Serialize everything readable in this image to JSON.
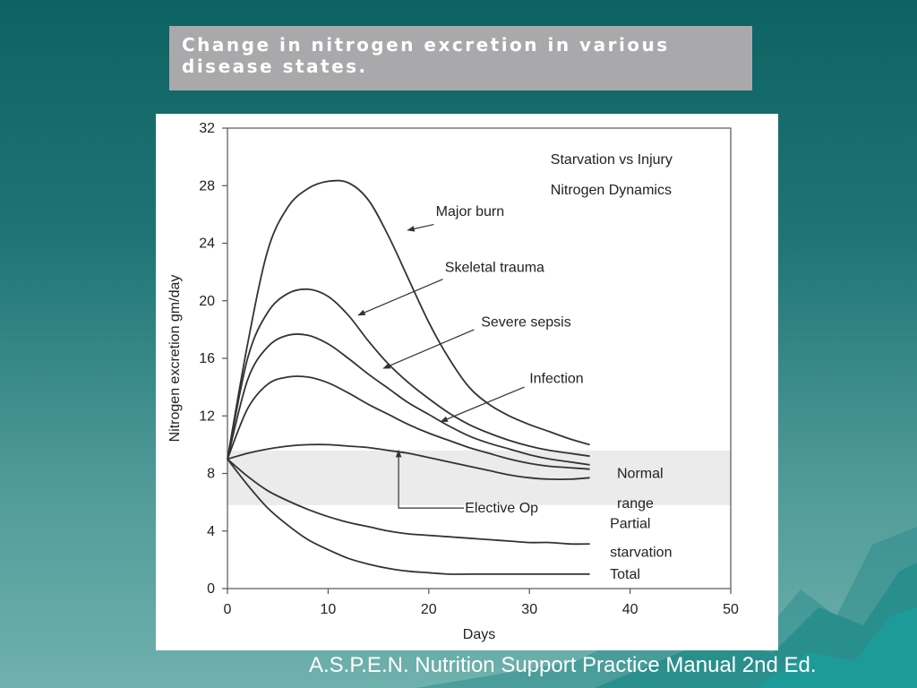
{
  "slide": {
    "title_line1": "Change in nitrogen excretion in various",
    "title_line2": "disease states.",
    "citation": "A.S.P.E.N. Nutrition Support Practice Manual 2nd Ed."
  },
  "chart_data": {
    "type": "line",
    "title_line1": "Starvation vs Injury",
    "title_line2": "Nitrogen Dynamics",
    "xlabel": "Days",
    "ylabel": "Nitrogen excretion gm/day",
    "xlim": [
      0,
      50
    ],
    "ylim": [
      0,
      32
    ],
    "xticks": [
      0,
      10,
      20,
      30,
      40,
      50
    ],
    "yticks": [
      0,
      4,
      8,
      12,
      16,
      20,
      24,
      28,
      32
    ],
    "normal_range": [
      5.8,
      9.6
    ],
    "normal_range_label_line1": "Normal",
    "normal_range_label_line2": "range",
    "series": [
      {
        "name": "Major burn",
        "points": [
          [
            0,
            9
          ],
          [
            2,
            17
          ],
          [
            4,
            23.5
          ],
          [
            6,
            26.5
          ],
          [
            8,
            27.8
          ],
          [
            10,
            28.3
          ],
          [
            12,
            28.2
          ],
          [
            14,
            27
          ],
          [
            16,
            24.5
          ],
          [
            18,
            21.5
          ],
          [
            20,
            18.5
          ],
          [
            22,
            16
          ],
          [
            24,
            14
          ],
          [
            26,
            12.8
          ],
          [
            28,
            12
          ],
          [
            30,
            11.4
          ],
          [
            32,
            10.9
          ],
          [
            34,
            10.4
          ],
          [
            36,
            10
          ]
        ]
      },
      {
        "name": "Skeletal trauma",
        "points": [
          [
            0,
            9
          ],
          [
            2,
            16
          ],
          [
            4,
            19.2
          ],
          [
            6,
            20.5
          ],
          [
            8,
            20.8
          ],
          [
            10,
            20.3
          ],
          [
            12,
            19
          ],
          [
            14,
            17.2
          ],
          [
            16,
            15.6
          ],
          [
            18,
            14.3
          ],
          [
            20,
            13.2
          ],
          [
            22,
            12.2
          ],
          [
            24,
            11.4
          ],
          [
            26,
            10.8
          ],
          [
            28,
            10.3
          ],
          [
            30,
            9.9
          ],
          [
            32,
            9.6
          ],
          [
            34,
            9.4
          ],
          [
            36,
            9.2
          ]
        ]
      },
      {
        "name": "Severe sepsis",
        "points": [
          [
            0,
            9
          ],
          [
            2,
            14.5
          ],
          [
            4,
            16.8
          ],
          [
            6,
            17.6
          ],
          [
            8,
            17.6
          ],
          [
            10,
            17
          ],
          [
            12,
            16
          ],
          [
            14,
            14.9
          ],
          [
            16,
            13.9
          ],
          [
            18,
            12.9
          ],
          [
            20,
            12.1
          ],
          [
            22,
            11.3
          ],
          [
            24,
            10.6
          ],
          [
            26,
            10.1
          ],
          [
            28,
            9.7
          ],
          [
            30,
            9.3
          ],
          [
            32,
            9.0
          ],
          [
            34,
            8.8
          ],
          [
            36,
            8.6
          ]
        ]
      },
      {
        "name": "Infection",
        "points": [
          [
            0,
            9
          ],
          [
            2,
            12.5
          ],
          [
            4,
            14.2
          ],
          [
            6,
            14.7
          ],
          [
            8,
            14.7
          ],
          [
            10,
            14.3
          ],
          [
            12,
            13.6
          ],
          [
            14,
            12.8
          ],
          [
            16,
            12.1
          ],
          [
            18,
            11.4
          ],
          [
            20,
            10.8
          ],
          [
            22,
            10.3
          ],
          [
            24,
            9.8
          ],
          [
            26,
            9.4
          ],
          [
            28,
            9.0
          ],
          [
            30,
            8.7
          ],
          [
            32,
            8.5
          ],
          [
            34,
            8.4
          ],
          [
            36,
            8.3
          ]
        ]
      },
      {
        "name": "Elective Op",
        "points": [
          [
            0,
            9
          ],
          [
            2,
            9.4
          ],
          [
            4,
            9.7
          ],
          [
            6,
            9.9
          ],
          [
            8,
            10
          ],
          [
            10,
            10
          ],
          [
            12,
            9.9
          ],
          [
            14,
            9.8
          ],
          [
            16,
            9.6
          ],
          [
            18,
            9.4
          ],
          [
            20,
            9.1
          ],
          [
            22,
            8.8
          ],
          [
            24,
            8.5
          ],
          [
            26,
            8.2
          ],
          [
            28,
            7.9
          ],
          [
            30,
            7.7
          ],
          [
            32,
            7.6
          ],
          [
            34,
            7.6
          ],
          [
            36,
            7.7
          ]
        ]
      },
      {
        "name": "Partial starvation",
        "points": [
          [
            0,
            9
          ],
          [
            2,
            7.8
          ],
          [
            4,
            6.8
          ],
          [
            6,
            6.1
          ],
          [
            8,
            5.5
          ],
          [
            10,
            5.0
          ],
          [
            12,
            4.6
          ],
          [
            14,
            4.3
          ],
          [
            16,
            4.0
          ],
          [
            18,
            3.8
          ],
          [
            20,
            3.7
          ],
          [
            22,
            3.6
          ],
          [
            24,
            3.5
          ],
          [
            26,
            3.4
          ],
          [
            28,
            3.3
          ],
          [
            30,
            3.2
          ],
          [
            32,
            3.2
          ],
          [
            34,
            3.1
          ],
          [
            36,
            3.1
          ]
        ]
      },
      {
        "name": "Total",
        "points": [
          [
            0,
            9
          ],
          [
            2,
            7.2
          ],
          [
            4,
            5.6
          ],
          [
            6,
            4.4
          ],
          [
            8,
            3.4
          ],
          [
            10,
            2.7
          ],
          [
            12,
            2.1
          ],
          [
            14,
            1.7
          ],
          [
            16,
            1.4
          ],
          [
            18,
            1.2
          ],
          [
            20,
            1.1
          ],
          [
            22,
            1.0
          ],
          [
            24,
            1.0
          ],
          [
            26,
            1.0
          ],
          [
            28,
            1.0
          ],
          [
            30,
            1.0
          ],
          [
            32,
            1.0
          ],
          [
            34,
            1.0
          ],
          [
            36,
            1.0
          ]
        ]
      }
    ],
    "labels": [
      {
        "series": "Major burn",
        "text_x": 20.7,
        "text_y": 25.9,
        "arrow": [
          [
            20.5,
            25.3
          ],
          [
            17.9,
            24.9
          ]
        ]
      },
      {
        "series": "Skeletal trauma",
        "text_x": 21.6,
        "text_y": 22.0,
        "arrow": [
          [
            21.4,
            21.5
          ],
          [
            13,
            19.0
          ]
        ]
      },
      {
        "series": "Severe sepsis",
        "text_x": 25.2,
        "text_y": 18.2,
        "arrow": [
          [
            24.5,
            18
          ],
          [
            15.5,
            15.3
          ]
        ]
      },
      {
        "series": "Infection",
        "text_x": 30.0,
        "text_y": 14.3,
        "arrow": [
          [
            29.5,
            14.0
          ],
          [
            21.2,
            11.6
          ]
        ]
      },
      {
        "series": "Elective Op",
        "text_x": 23.6,
        "text_y": 5.3,
        "arrow": [
          [
            23.5,
            5.6
          ],
          [
            17,
            5.6
          ],
          [
            17,
            9.6
          ]
        ]
      },
      {
        "series": "Partial starvation",
        "text_x": 38.0,
        "text_y": 4.2,
        "text_y2": 2.2
      },
      {
        "series": "Total",
        "text_x": 38.0,
        "text_y": 0.7
      }
    ],
    "line_color": "#333333",
    "band_color": "#ebebeb"
  }
}
